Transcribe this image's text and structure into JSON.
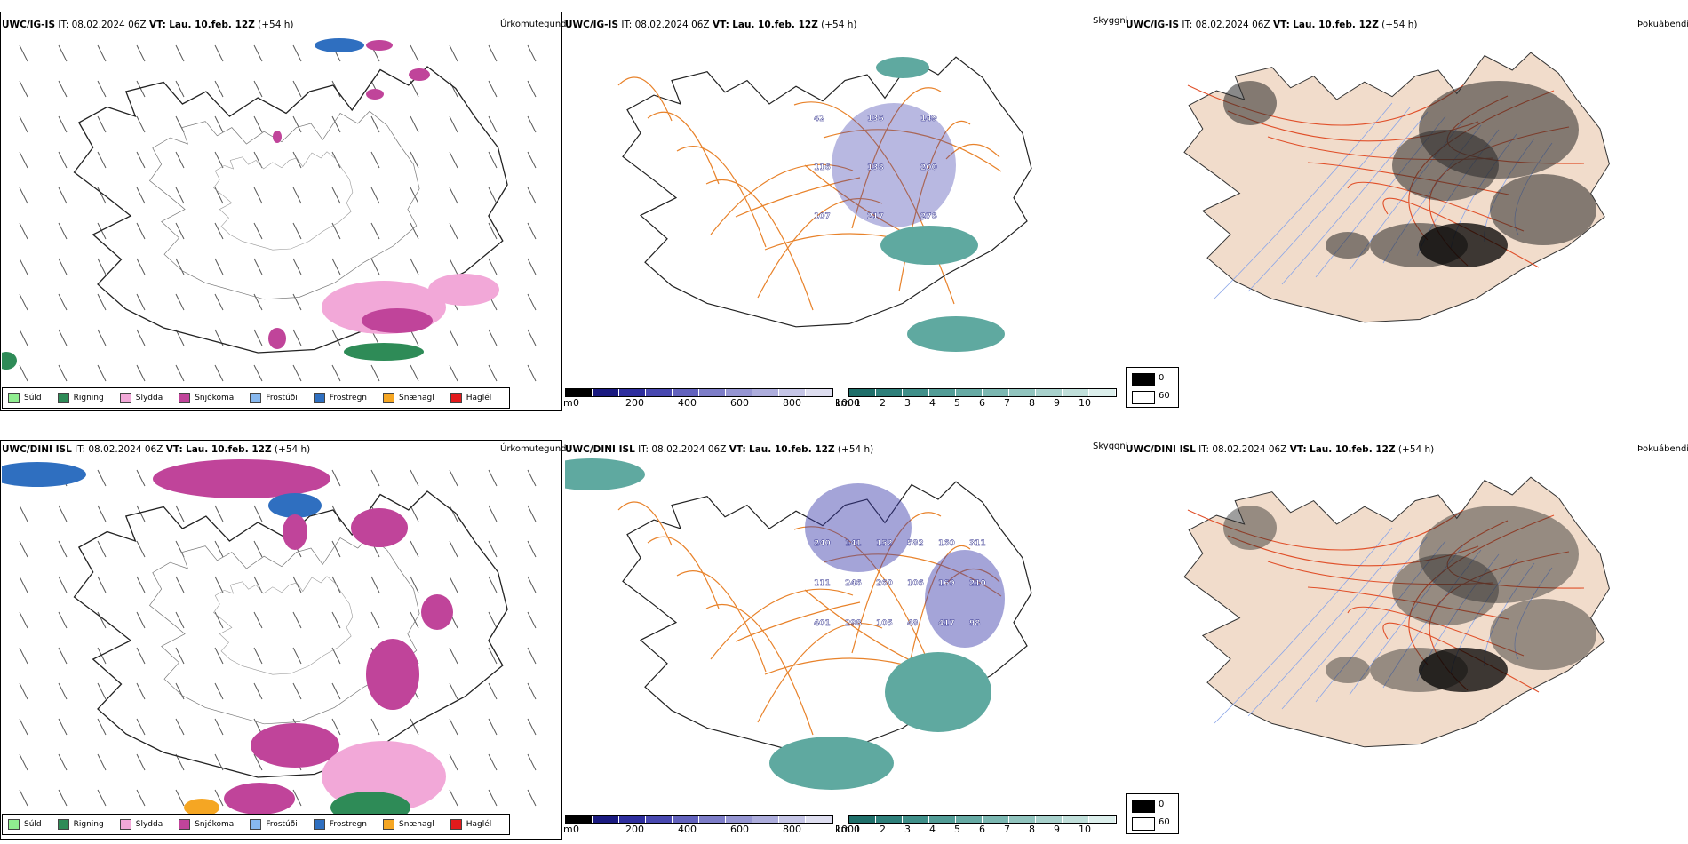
{
  "panels": {
    "top": {
      "precip": {
        "source": "UWC/IG-IS",
        "it_label": "IT:",
        "it": "08.02.2024 06Z",
        "vt_label": "VT:",
        "vt": "Lau. 10.feb. 12Z",
        "lead": "(+54 h)",
        "title": "Úrkomutegund"
      },
      "snow": {
        "source": "UWC/IG-IS",
        "it_label": "IT:",
        "it": "08.02.2024 06Z",
        "vt_label": "VT:",
        "vt": "Lau. 10.feb. 12Z",
        "lead": "(+54 h)",
        "title": "Skyggni"
      },
      "cloud": {
        "source": "UWC/IG-IS",
        "it_label": "IT:",
        "it": "08.02.2024 06Z",
        "vt_label": "VT:",
        "vt": "Lau. 10.feb. 12Z",
        "lead": "(+54 h)",
        "title": "Þokuábendi"
      }
    },
    "bottom": {
      "precip": {
        "source": "UWC/DINI ISL",
        "it_label": "IT:",
        "it": "08.02.2024 06Z",
        "vt_label": "VT:",
        "vt": "Lau. 10.feb. 12Z",
        "lead": "(+54 h)",
        "title": "Úrkomutegund"
      },
      "snow": {
        "source": "UWC/DINI ISL",
        "it_label": "IT:",
        "it": "08.02.2024 06Z",
        "vt_label": "VT:",
        "vt": "Lau. 10.feb. 12Z",
        "lead": "(+54 h)",
        "title": "Skyggni"
      },
      "cloud": {
        "source": "UWC/DINI ISL",
        "it_label": "IT:",
        "it": "08.02.2024 06Z",
        "vt_label": "VT:",
        "vt": "Lau. 10.feb. 12Z",
        "lead": "(+54 h)",
        "title": "Þokuábendi"
      }
    }
  },
  "precip_legend": [
    {
      "label": "Súld",
      "color": "#90ee90"
    },
    {
      "label": "Rigning",
      "color": "#2e8b57"
    },
    {
      "label": "Slydda",
      "color": "#f2a8d8"
    },
    {
      "label": "Snjókoma",
      "color": "#c0449a"
    },
    {
      "label": "Frostúði",
      "color": "#87b8ef"
    },
    {
      "label": "Frostregn",
      "color": "#2f6fc0"
    },
    {
      "label": "Snæhagl",
      "color": "#f5a623"
    },
    {
      "label": "Haglél",
      "color": "#e31a1c"
    }
  ],
  "height_scale": {
    "unit": "m",
    "ticks": [
      "0",
      "200",
      "400",
      "600",
      "800",
      "1000"
    ],
    "colors": [
      "#000000",
      "#1a1a80",
      "#2e2e9e",
      "#4848b0",
      "#6262bd",
      "#7d7dc8",
      "#9595d2",
      "#adaddc",
      "#c5c5e6",
      "#dedef0"
    ]
  },
  "visibility_scale": {
    "unit": "km",
    "ticks": [
      "1",
      "2",
      "3",
      "4",
      "5",
      "6",
      "7",
      "8",
      "9",
      "10"
    ],
    "colors": [
      "#1f6f6a",
      "#2e7f7a",
      "#3f8f89",
      "#529c96",
      "#66aaa4",
      "#7bb7b1",
      "#91c4be",
      "#a8d1cc",
      "#c0dfda",
      "#dcefec"
    ]
  },
  "cloud_key": {
    "dark_label": "0",
    "light_label": "60"
  },
  "snow_labels_top": [
    "42",
    "136",
    "149",
    "116",
    "138",
    "200",
    "107",
    "217",
    "276"
  ],
  "snow_labels_bottom": [
    "240",
    "141",
    "152",
    "582",
    "160",
    "311",
    "111",
    "246",
    "260",
    "106",
    "169",
    "210",
    "401",
    "298",
    "105",
    "48",
    "417",
    "98"
  ],
  "colors": {
    "precip_fill": "#c0449a",
    "sleet": "#f2a8d8",
    "rain": "#2e8b57",
    "frz_rain": "#2f6fc0",
    "road": "#e8822a",
    "land_cloud": "#f1dccb",
    "river": "#8aa5e8",
    "road_cloud": "#e0502a",
    "teal": "#5fa9a0",
    "blue": "#3535a8"
  }
}
